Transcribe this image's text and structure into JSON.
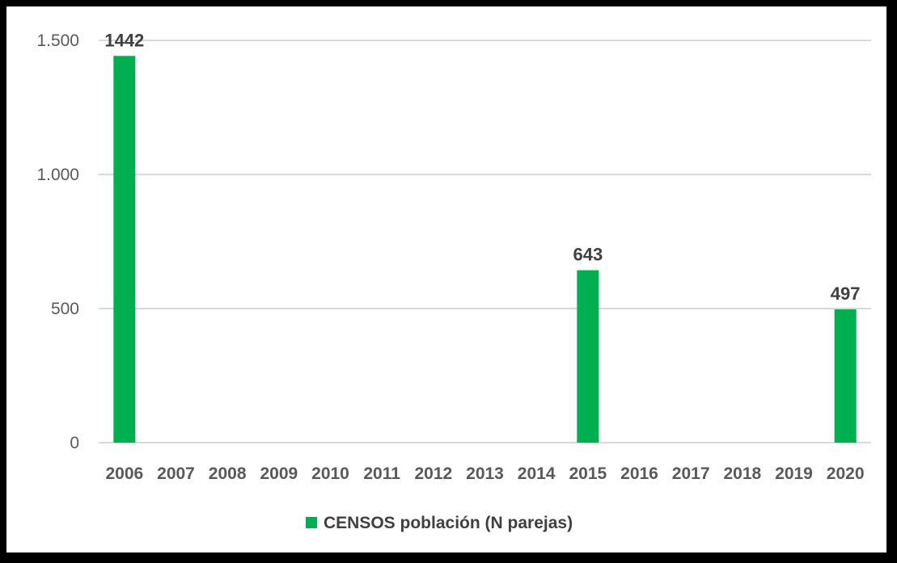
{
  "chart_data": {
    "type": "bar",
    "categories": [
      "2006",
      "2007",
      "2008",
      "2009",
      "2010",
      "2011",
      "2012",
      "2013",
      "2014",
      "2015",
      "2016",
      "2017",
      "2018",
      "2019",
      "2020"
    ],
    "series": [
      {
        "name": "CENSOS población (N parejas)",
        "values": [
          1442,
          null,
          null,
          null,
          null,
          null,
          null,
          null,
          null,
          643,
          null,
          null,
          null,
          null,
          497
        ],
        "data_labels": [
          "1442",
          "",
          "",
          "",
          "",
          "",
          "",
          "",
          "",
          "643",
          "",
          "",
          "",
          "",
          "497"
        ],
        "color": "#00b050"
      }
    ],
    "y_ticks": [
      0,
      500,
      1000,
      1500
    ],
    "y_tick_labels": [
      "0",
      "500",
      "1.000",
      "1.500"
    ],
    "ylim": [
      0,
      1500
    ],
    "grid": true,
    "legend_position": "bottom",
    "title": "",
    "xlabel": "",
    "ylabel": ""
  },
  "colors": {
    "bar": "#00b050",
    "grid": "#d9d9d9",
    "tick_text": "#595959",
    "label_text": "#404040",
    "border": "#000000"
  }
}
